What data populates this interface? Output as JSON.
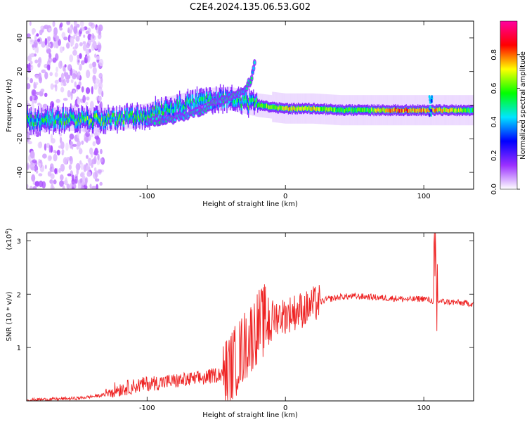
{
  "figure": {
    "title": "C2E4.2024.135.06.53.G02"
  },
  "chart_data": [
    {
      "type": "heatmap",
      "xlabel": "Height of straight line (km)",
      "ylabel": "Frequency (Hz)",
      "xlim": [
        -187,
        136
      ],
      "ylim": [
        -50,
        50
      ],
      "xticks": [
        -100,
        0,
        100
      ],
      "yticks": [
        -40,
        -20,
        0,
        20,
        40
      ],
      "colorbar": {
        "label": "Normalized spectral amplitude",
        "range": [
          0,
          1
        ],
        "ticks": [
          0.0,
          0.2,
          0.4,
          0.6,
          0.8
        ],
        "tick_labels": [
          "0.0",
          "0.2",
          "0.4",
          "0.6",
          "0.8"
        ],
        "colormap": [
          "#ffffff",
          "#9b30ff",
          "#0000ff",
          "#00e5ff",
          "#00ff00",
          "#ffff00",
          "#ff0000",
          "#ff00a0"
        ]
      },
      "ridge": [
        {
          "x": -180,
          "y": -9,
          "amp": 0.5
        },
        {
          "x": -160,
          "y": -8,
          "amp": 0.55
        },
        {
          "x": -140,
          "y": -9,
          "amp": 0.6
        },
        {
          "x": -120,
          "y": -8,
          "amp": 0.55
        },
        {
          "x": -100,
          "y": -6,
          "amp": 0.55
        },
        {
          "x": -90,
          "y": -3,
          "amp": 0.55
        },
        {
          "x": -80,
          "y": -1,
          "amp": 0.5
        },
        {
          "x": -60,
          "y": 3,
          "amp": 0.5
        },
        {
          "x": -40,
          "y": 4,
          "amp": 0.5
        },
        {
          "x": -20,
          "y": 0,
          "amp": 0.6
        },
        {
          "x": 0,
          "y": -2,
          "amp": 0.7
        },
        {
          "x": 20,
          "y": -2,
          "amp": 0.7
        },
        {
          "x": 40,
          "y": -3,
          "amp": 0.55
        },
        {
          "x": 60,
          "y": -3,
          "amp": 0.6
        },
        {
          "x": 80,
          "y": -3,
          "amp": 0.8
        },
        {
          "x": 100,
          "y": -3,
          "amp": 0.75
        },
        {
          "x": 120,
          "y": -3,
          "amp": 0.7
        },
        {
          "x": 136,
          "y": -3,
          "amp": 0.5
        }
      ],
      "secondary_ridge": [
        {
          "x": -100,
          "y": -10
        },
        {
          "x": -80,
          "y": -8
        },
        {
          "x": -60,
          "y": -3
        },
        {
          "x": -50,
          "y": 2
        },
        {
          "x": -40,
          "y": 5
        },
        {
          "x": -30,
          "y": 8
        },
        {
          "x": -25,
          "y": 15
        },
        {
          "x": -22,
          "y": 25
        }
      ]
    },
    {
      "type": "line",
      "xlabel": "Height of straight line (km)",
      "ylabel": "SNR (10 * v/v)",
      "y_exponent_label": "(x10",
      "y_exponent_power": "4",
      "y_exponent_close": ")",
      "xlim": [
        -187,
        136
      ],
      "ylim": [
        0,
        3.15
      ],
      "xticks": [
        -100,
        0,
        100
      ],
      "yticks": [
        1,
        2,
        3
      ],
      "color": "#ee2222",
      "series": [
        {
          "values_units": "x10^4",
          "points": [
            [
              -187,
              0.02
            ],
            [
              -170,
              0.03
            ],
            [
              -150,
              0.05
            ],
            [
              -140,
              0.08
            ],
            [
              -120,
              0.15
            ],
            [
              -100,
              0.25
            ],
            [
              -80,
              0.3
            ],
            [
              -60,
              0.35
            ],
            [
              -45,
              0.45
            ],
            [
              -40,
              0.6
            ],
            [
              -35,
              0.8
            ],
            [
              -30,
              1.0
            ],
            [
              -25,
              1.2
            ],
            [
              -20,
              1.4
            ],
            [
              -15,
              1.5
            ],
            [
              -10,
              1.55
            ],
            [
              -5,
              1.6
            ],
            [
              0,
              1.6
            ],
            [
              5,
              1.65
            ],
            [
              10,
              1.7
            ],
            [
              15,
              1.72
            ],
            [
              20,
              1.8
            ],
            [
              25,
              1.85
            ],
            [
              30,
              1.9
            ],
            [
              40,
              1.95
            ],
            [
              50,
              1.96
            ],
            [
              60,
              1.95
            ],
            [
              70,
              1.93
            ],
            [
              80,
              1.92
            ],
            [
              90,
              1.9
            ],
            [
              100,
              1.92
            ],
            [
              105,
              1.88
            ],
            [
              110,
              1.87
            ],
            [
              120,
              1.85
            ],
            [
              130,
              1.83
            ],
            [
              136,
              1.82
            ]
          ]
        }
      ]
    }
  ]
}
